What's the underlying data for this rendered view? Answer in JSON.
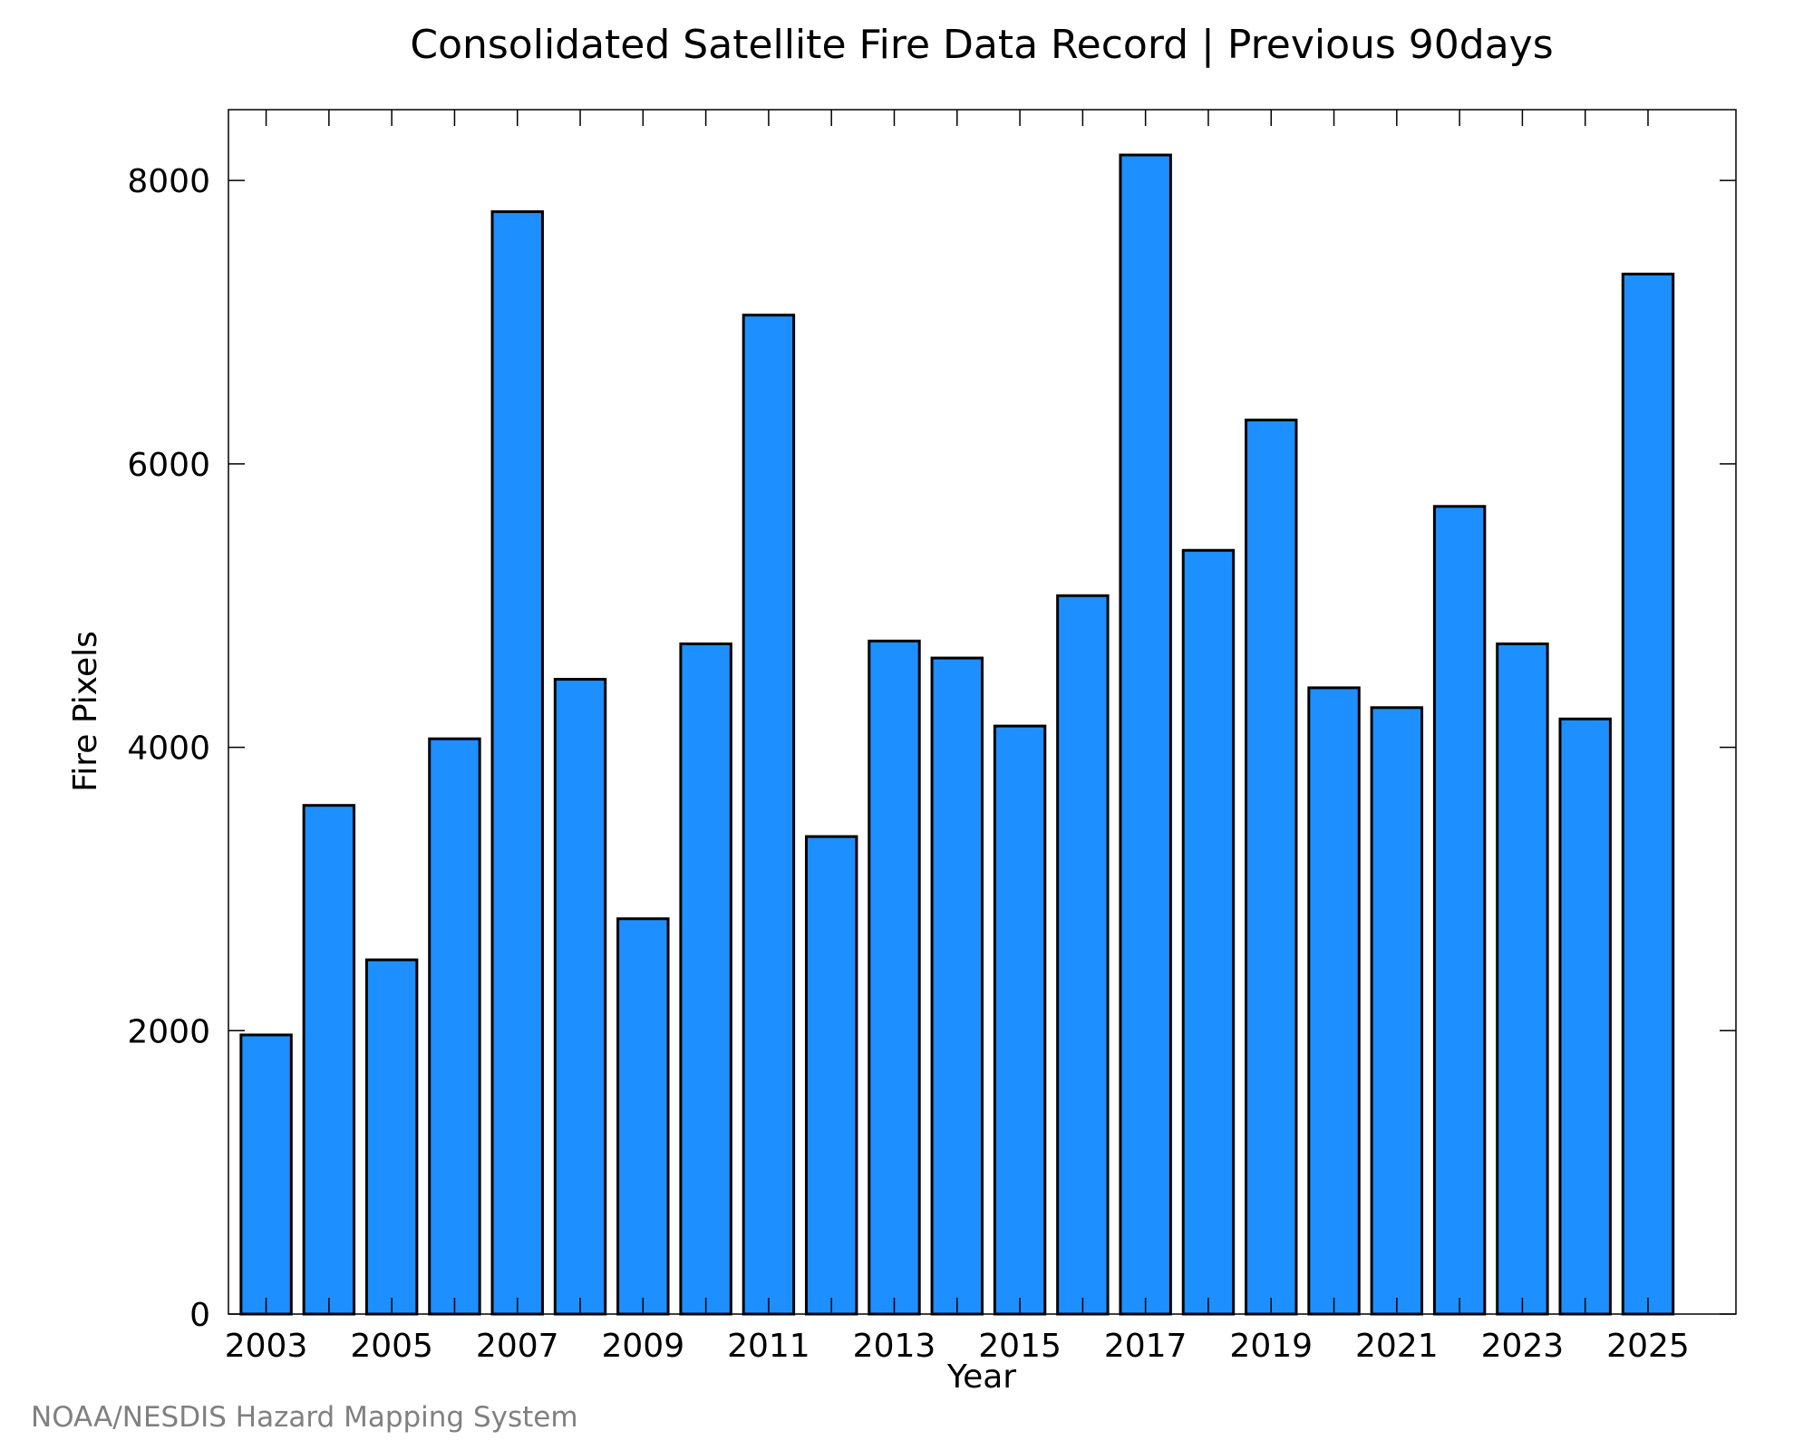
{
  "chart_data": {
    "type": "bar",
    "title": "Consolidated Satellite Fire Data Record | Previous 90days",
    "xlabel": "Year",
    "ylabel": "Fire Pixels",
    "credit": "NOAA/NESDIS Hazard Mapping System",
    "categories": [
      2003,
      2004,
      2005,
      2006,
      2007,
      2008,
      2009,
      2010,
      2011,
      2012,
      2013,
      2014,
      2015,
      2016,
      2017,
      2018,
      2019,
      2020,
      2021,
      2022,
      2023,
      2024,
      2025
    ],
    "values": [
      1970,
      3590,
      2500,
      4060,
      7780,
      4480,
      2790,
      4730,
      7050,
      3370,
      4750,
      4630,
      4150,
      5070,
      8180,
      5390,
      6310,
      4420,
      4280,
      5700,
      4730,
      4200,
      7340
    ],
    "xlim": [
      2002.4,
      2026.4
    ],
    "ylim": [
      0,
      8500
    ],
    "yticks": [
      0,
      2000,
      4000,
      6000,
      8000
    ],
    "yticklabels": [
      "0",
      "2000",
      "4000",
      "6000",
      "8000"
    ],
    "xticks": [
      2003,
      2004,
      2005,
      2006,
      2007,
      2008,
      2009,
      2010,
      2011,
      2012,
      2013,
      2014,
      2015,
      2016,
      2017,
      2018,
      2019,
      2020,
      2021,
      2022,
      2023,
      2024,
      2025
    ],
    "xticklabels": [
      "2003",
      "",
      "2005",
      "",
      "2007",
      "",
      "2009",
      "",
      "2011",
      "",
      "2013",
      "",
      "2015",
      "",
      "2017",
      "",
      "2019",
      "",
      "2021",
      "",
      "2023",
      "",
      "2025"
    ],
    "bar_color": "#1e8fff",
    "grid": false,
    "legend": "none"
  }
}
